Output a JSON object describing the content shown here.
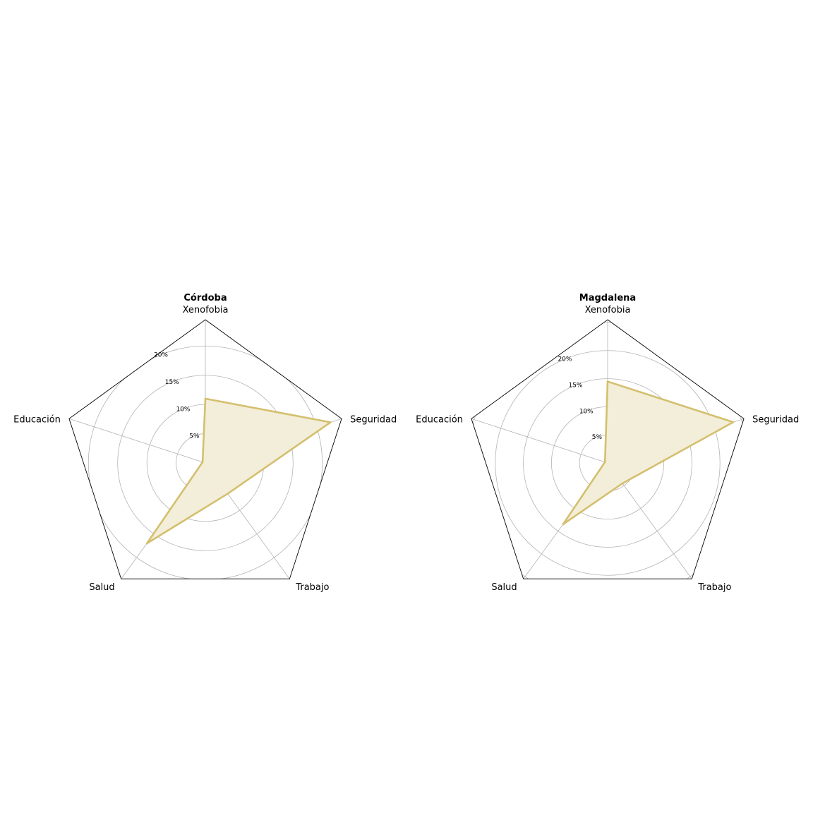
{
  "chart_data": [
    {
      "type": "radar",
      "title": "Córdoba",
      "axes": [
        "Xenofobia",
        "Seguridad",
        "Trabajo",
        "Salud",
        "Educación"
      ],
      "values": [
        11.0,
        22.5,
        6.5,
        17.0,
        0.5
      ],
      "rlim": [
        0,
        24.5
      ],
      "rticks": [
        5,
        10,
        15,
        20
      ],
      "rtick_labels": [
        "5%",
        "10%",
        "15%",
        "20%"
      ],
      "grid": true,
      "color": "#d4bf6e",
      "fill_color": "#f3eed9"
    },
    {
      "type": "radar",
      "title": "Magdalena",
      "axes": [
        "Xenofobia",
        "Seguridad",
        "Trabajo",
        "Salud",
        "Educación"
      ],
      "values": [
        14.5,
        23.5,
        4.5,
        13.5,
        0.5
      ],
      "rlim": [
        0,
        25.5
      ],
      "rticks": [
        5,
        10,
        15,
        20
      ],
      "rtick_labels": [
        "5%",
        "10%",
        "15%",
        "20%"
      ],
      "grid": true,
      "color": "#d4bf6e",
      "fill_color": "#f3eed9"
    }
  ]
}
